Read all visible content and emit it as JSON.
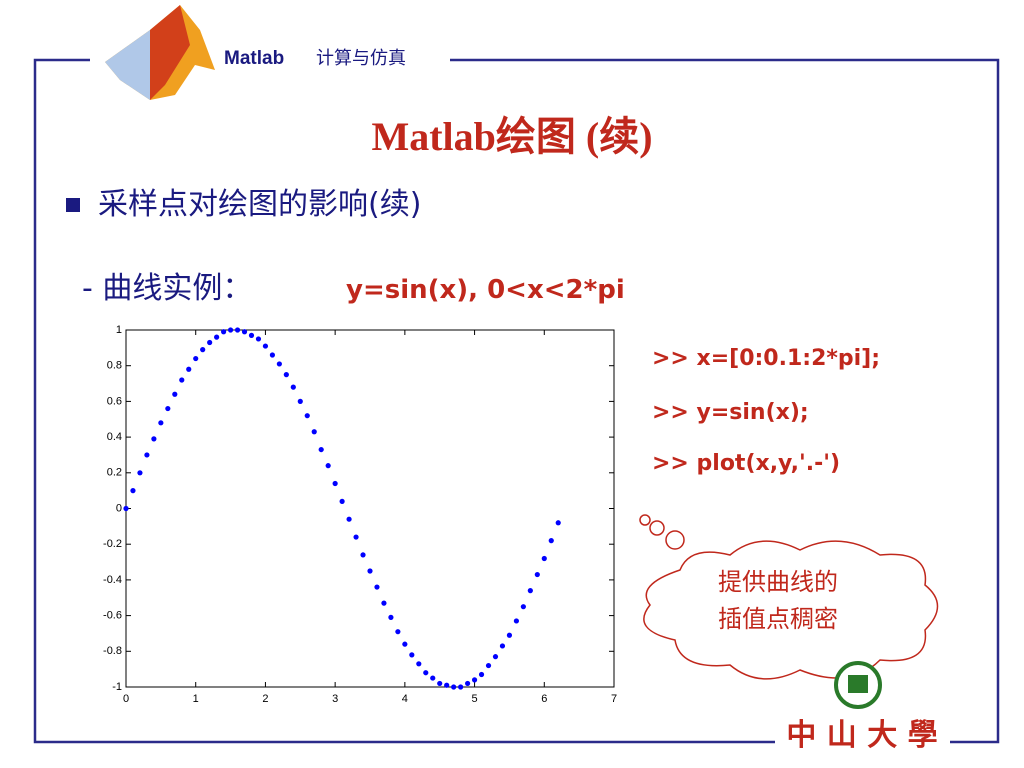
{
  "header": {
    "brand": "Matlab",
    "course": "计算与仿真"
  },
  "title": "Matlab绘图 (续)",
  "bullet": "采样点对绘图的影响(续)",
  "example": {
    "label": "- 曲线实例：",
    "formula": "y=sin(x), 0<x<2*pi"
  },
  "code": [
    ">> x=[0:0.1:2*pi];",
    ">> y=sin(x);",
    ">> plot(x,y,'.-')"
  ],
  "callout": [
    "提供曲线的",
    "插值点稠密"
  ],
  "logo": "中 山 大 學",
  "chart_data": {
    "type": "scatter",
    "color": "#0000ff",
    "x": [
      0,
      0.1,
      0.2,
      0.3,
      0.4,
      0.5,
      0.6,
      0.7,
      0.8,
      0.9,
      1.0,
      1.1,
      1.2,
      1.3,
      1.4,
      1.5,
      1.6,
      1.7,
      1.8,
      1.9,
      2.0,
      2.1,
      2.2,
      2.3,
      2.4,
      2.5,
      2.6,
      2.7,
      2.8,
      2.9,
      3.0,
      3.1,
      3.2,
      3.3,
      3.4,
      3.5,
      3.6,
      3.7,
      3.8,
      3.9,
      4.0,
      4.1,
      4.2,
      4.3,
      4.4,
      4.5,
      4.6,
      4.7,
      4.8,
      4.9,
      5.0,
      5.1,
      5.2,
      5.3,
      5.4,
      5.5,
      5.6,
      5.7,
      5.8,
      5.9,
      6.0,
      6.1,
      6.2
    ],
    "values": [
      0,
      0.1,
      0.2,
      0.3,
      0.39,
      0.48,
      0.56,
      0.64,
      0.72,
      0.78,
      0.84,
      0.89,
      0.93,
      0.96,
      0.99,
      1.0,
      1.0,
      0.99,
      0.97,
      0.95,
      0.91,
      0.86,
      0.81,
      0.75,
      0.68,
      0.6,
      0.52,
      0.43,
      0.33,
      0.24,
      0.14,
      0.04,
      -0.06,
      -0.16,
      -0.26,
      -0.35,
      -0.44,
      -0.53,
      -0.61,
      -0.69,
      -0.76,
      -0.82,
      -0.87,
      -0.92,
      -0.95,
      -0.98,
      -0.99,
      -1.0,
      -1.0,
      -0.98,
      -0.96,
      -0.93,
      -0.88,
      -0.83,
      -0.77,
      -0.71,
      -0.63,
      -0.55,
      -0.46,
      -0.37,
      -0.28,
      -0.18,
      -0.08
    ],
    "xlim": [
      0,
      7
    ],
    "ylim": [
      -1,
      1
    ],
    "xticks": [
      0,
      1,
      2,
      3,
      4,
      5,
      6,
      7
    ],
    "yticks": [
      -1,
      -0.8,
      -0.6,
      -0.4,
      -0.2,
      0,
      0.2,
      0.4,
      0.6,
      0.8,
      1
    ]
  }
}
